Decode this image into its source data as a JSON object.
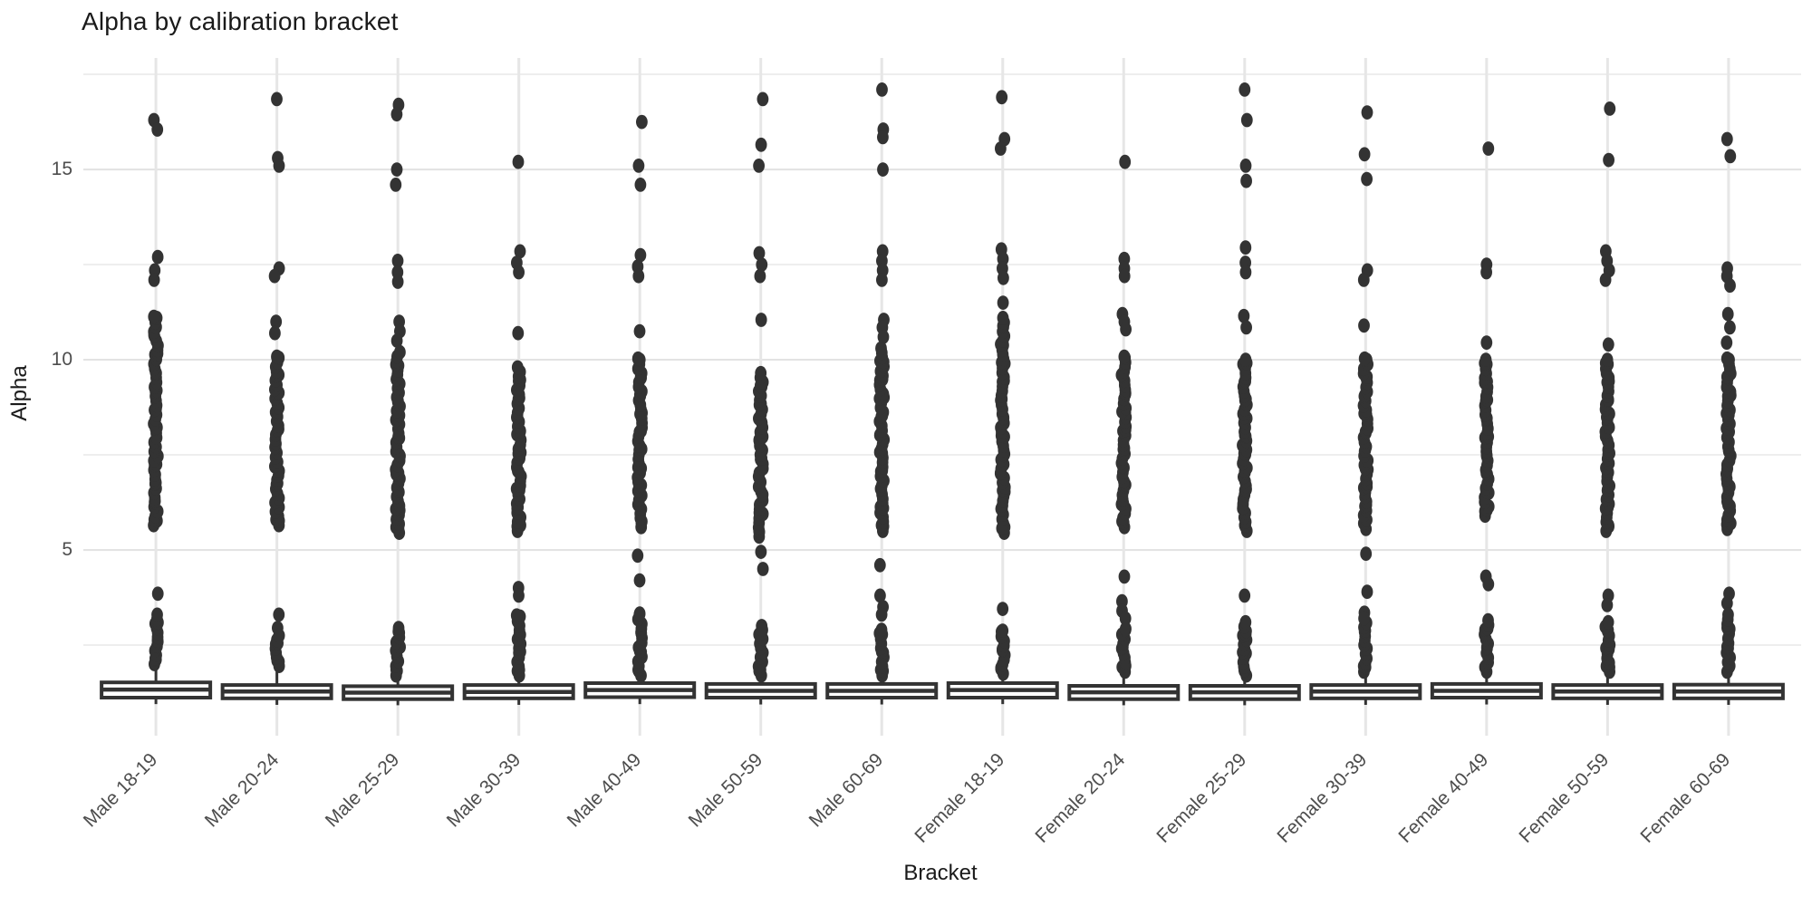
{
  "chart_data": {
    "type": "boxplot",
    "title": "Alpha by calibration bracket",
    "xlabel": "Bracket",
    "ylabel": "Alpha",
    "y_ticks": [
      5,
      10,
      15
    ],
    "y_minor_ticks": [
      2.5,
      7.5,
      12.5,
      17.5
    ],
    "ylim": [
      0.12,
      17.93
    ],
    "grid": "horizontal major+minor light gray, one vertical gridline per category, white background, no axis lines or tick marks",
    "legend_position": "none",
    "colors": {
      "ink": "#333333",
      "box_fill": "#ffffff",
      "grid_major": "#e3e3e3",
      "grid_minor": "#eeeeee",
      "grid_vertical": "#e6e6e6",
      "title_text": "#1a1a1a",
      "tick_text": "#4d4d4d"
    },
    "categories": [
      "Male 18-19",
      "Male 20-24",
      "Male 25-29",
      "Male 30-39",
      "Male 40-49",
      "Male 50-59",
      "Male 60-69",
      "Female 18-19",
      "Female 20-24",
      "Female 25-29",
      "Female 30-39",
      "Female 40-49",
      "Female 50-59",
      "Female 60-69"
    ],
    "series": [
      {
        "label": "Male 18-19",
        "box": {
          "q1": 1.12,
          "median": 1.33,
          "q3": 1.52,
          "whisker_low": 0.95,
          "whisker_high": 1.88
        },
        "points_high": [
          16.3,
          16.05,
          12.7,
          12.35,
          12.1
        ],
        "band_mid": [
          5.65,
          11.1
        ],
        "points_low": [
          3.85
        ],
        "band_low": [
          2.0,
          3.3
        ]
      },
      {
        "label": "Male 20-24",
        "box": {
          "q1": 1.1,
          "median": 1.28,
          "q3": 1.45,
          "whisker_low": 0.93,
          "whisker_high": 1.8
        },
        "points_high": [
          16.85,
          15.3,
          15.1,
          12.4,
          12.2,
          11.0,
          10.7
        ],
        "band_mid": [
          5.65,
          10.05
        ],
        "points_low": [
          3.3,
          2.95
        ],
        "band_low": [
          1.95,
          2.75
        ]
      },
      {
        "label": "Male 25-29",
        "box": {
          "q1": 1.08,
          "median": 1.25,
          "q3": 1.42,
          "whisker_low": 0.92,
          "whisker_high": 1.78
        },
        "points_high": [
          16.7,
          16.45,
          15.0,
          14.6,
          12.6,
          12.3,
          12.05,
          11.0,
          10.75,
          10.5
        ],
        "band_mid": [
          5.45,
          10.2
        ],
        "points_low": [],
        "band_low": [
          1.7,
          2.95
        ]
      },
      {
        "label": "Male 30-39",
        "box": {
          "q1": 1.1,
          "median": 1.27,
          "q3": 1.45,
          "whisker_low": 0.93,
          "whisker_high": 1.8
        },
        "points_high": [
          15.2,
          12.85,
          12.55,
          12.3,
          10.7
        ],
        "band_mid": [
          5.5,
          9.8
        ],
        "points_low": [
          4.0,
          3.8
        ],
        "band_low": [
          1.7,
          3.25
        ]
      },
      {
        "label": "Male 40-49",
        "box": {
          "q1": 1.13,
          "median": 1.32,
          "q3": 1.5,
          "whisker_low": 0.95,
          "whisker_high": 1.85
        },
        "points_high": [
          16.25,
          15.1,
          14.6,
          12.75,
          12.45,
          12.2,
          10.75
        ],
        "band_mid": [
          5.6,
          10.0
        ],
        "points_low": [
          4.85,
          4.2
        ],
        "band_low": [
          1.7,
          3.3
        ]
      },
      {
        "label": "Male 50-59",
        "box": {
          "q1": 1.12,
          "median": 1.3,
          "q3": 1.48,
          "whisker_low": 0.94,
          "whisker_high": 1.83
        },
        "points_high": [
          16.85,
          15.65,
          15.1,
          12.8,
          12.5,
          12.2,
          11.05
        ],
        "band_mid": [
          5.35,
          9.65
        ],
        "points_low": [
          4.95,
          4.5,
          3.0
        ],
        "band_low": [
          1.7,
          2.9
        ]
      },
      {
        "label": "Male 60-69",
        "box": {
          "q1": 1.12,
          "median": 1.3,
          "q3": 1.48,
          "whisker_low": 0.94,
          "whisker_high": 1.83
        },
        "points_high": [
          17.1,
          16.05,
          15.85,
          15.0,
          12.85,
          12.6,
          12.35,
          12.1,
          11.05,
          10.85,
          10.6
        ],
        "band_mid": [
          5.5,
          10.3
        ],
        "points_low": [
          4.6,
          3.8,
          3.5,
          3.3
        ],
        "band_low": [
          1.7,
          2.9
        ]
      },
      {
        "label": "Female 18-19",
        "box": {
          "q1": 1.12,
          "median": 1.32,
          "q3": 1.5,
          "whisker_low": 0.95,
          "whisker_high": 1.85
        },
        "points_high": [
          16.9,
          15.8,
          15.55,
          12.9,
          12.65,
          12.4,
          12.15,
          11.5
        ],
        "band_mid": [
          5.45,
          11.1
        ],
        "points_low": [
          3.45
        ],
        "band_low": [
          1.75,
          2.85
        ]
      },
      {
        "label": "Female 20-24",
        "box": {
          "q1": 1.08,
          "median": 1.26,
          "q3": 1.43,
          "whisker_low": 0.92,
          "whisker_high": 1.78
        },
        "points_high": [
          15.2,
          12.65,
          12.4,
          12.2,
          11.2,
          11.0,
          10.8
        ],
        "band_mid": [
          5.6,
          10.05
        ],
        "points_low": [
          4.3,
          3.65,
          3.4,
          3.2
        ],
        "band_low": [
          1.8,
          2.9
        ]
      },
      {
        "label": "Female 25-29",
        "box": {
          "q1": 1.08,
          "median": 1.26,
          "q3": 1.43,
          "whisker_low": 0.92,
          "whisker_high": 1.78
        },
        "points_high": [
          17.1,
          16.3,
          15.1,
          14.7,
          12.95,
          12.55,
          12.3,
          11.15,
          10.85
        ],
        "band_mid": [
          5.5,
          10.0
        ],
        "points_low": [
          3.8
        ],
        "band_low": [
          1.7,
          3.1
        ]
      },
      {
        "label": "Female 30-39",
        "box": {
          "q1": 1.1,
          "median": 1.28,
          "q3": 1.45,
          "whisker_low": 0.93,
          "whisker_high": 1.8
        },
        "points_high": [
          16.5,
          15.4,
          14.75,
          12.35,
          12.1,
          10.9
        ],
        "band_mid": [
          5.55,
          10.0
        ],
        "points_low": [
          4.9,
          3.9,
          3.35
        ],
        "band_low": [
          1.8,
          3.2
        ]
      },
      {
        "label": "Female 40-49",
        "box": {
          "q1": 1.12,
          "median": 1.3,
          "q3": 1.48,
          "whisker_low": 0.94,
          "whisker_high": 1.82
        },
        "points_high": [
          15.55,
          12.5,
          12.3,
          10.45
        ],
        "band_mid": [
          5.9,
          10.0
        ],
        "points_low": [
          4.3,
          4.1
        ],
        "band_low": [
          1.8,
          3.15
        ]
      },
      {
        "label": "Female 50-59",
        "box": {
          "q1": 1.1,
          "median": 1.28,
          "q3": 1.45,
          "whisker_low": 0.93,
          "whisker_high": 1.8
        },
        "points_high": [
          16.6,
          15.25,
          12.85,
          12.6,
          12.35,
          12.1,
          10.4
        ],
        "band_mid": [
          5.5,
          10.0
        ],
        "points_low": [
          3.8,
          3.55
        ],
        "band_low": [
          1.8,
          3.1
        ]
      },
      {
        "label": "Female 60-69",
        "box": {
          "q1": 1.1,
          "median": 1.28,
          "q3": 1.46,
          "whisker_low": 0.93,
          "whisker_high": 1.8
        },
        "points_high": [
          15.8,
          15.35,
          12.4,
          12.2,
          11.95,
          11.2,
          10.85,
          10.45
        ],
        "band_mid": [
          5.55,
          10.0
        ],
        "points_low": [
          3.85,
          3.6
        ],
        "band_low": [
          1.8,
          3.3
        ]
      }
    ]
  }
}
